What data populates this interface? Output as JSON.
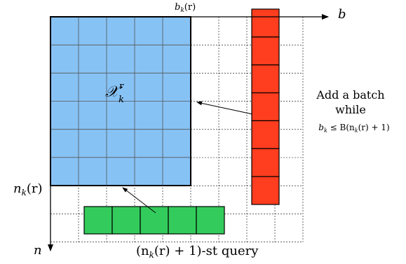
{
  "axes": {
    "b_label": "b",
    "n_label": "n",
    "bk_label_base": "b",
    "bk_label_sub": "k",
    "bk_label_arg": "(r)",
    "nk_label_base": "n",
    "nk_label_sub": "k",
    "nk_label_arg": "(r)"
  },
  "region": {
    "label_base": "𝒳",
    "label_sup": "r",
    "label_sub": "k",
    "fill": "#87c2f5",
    "cols": 5,
    "rows": 6
  },
  "batch_column": {
    "fill": "#ff3d1f",
    "cells": 7
  },
  "query_row": {
    "fill": "#33cc5c",
    "cells": 5,
    "label": "(n",
    "label_sub": "k",
    "label_rest": "(r) + 1)-st query"
  },
  "annotation": {
    "line1": "Add a batch",
    "line2": "while",
    "line3_base": "b",
    "line3_sub": "k",
    "line3_rest": " ≤ B(n",
    "line3_sub2": "k",
    "line3_end": "(r) + 1)"
  },
  "grid": {
    "cols": 9,
    "rows": 8
  }
}
